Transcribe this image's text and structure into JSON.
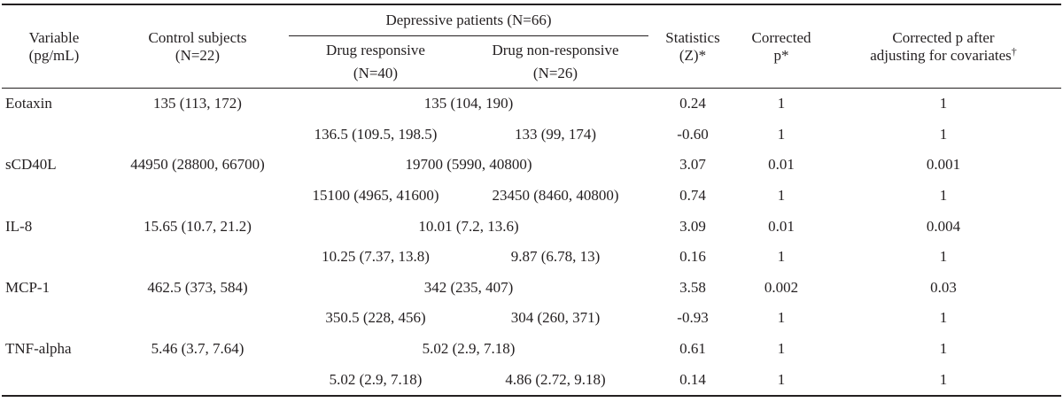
{
  "table": {
    "headers": {
      "variable": [
        "Variable",
        "(pg/mL)"
      ],
      "control": [
        "Control subjects",
        "(N=22)"
      ],
      "depressive_group": "Depressive patients (N=66)",
      "drug_responsive": [
        "Drug responsive",
        "(N=40)"
      ],
      "drug_nonresponsive": [
        "Drug non-responsive",
        "(N=26)"
      ],
      "statistics": [
        "Statistics",
        "(Z)*"
      ],
      "corrected_p": [
        "Corrected",
        "p*"
      ],
      "corrected_p_adj": [
        "Corrected p after",
        "adjusting for covariates"
      ],
      "corrected_p_adj_mark": "†"
    },
    "rows": [
      {
        "variable": "Eotaxin",
        "control": "135 (113, 172)",
        "combined": "135 (104, 190)",
        "z": "0.24",
        "p": "1",
        "padj": "1"
      },
      {
        "variable": "",
        "responsive": "136.5 (109.5, 198.5)",
        "nonresponsive": "133 (99, 174)",
        "z": "-0.60",
        "p": "1",
        "padj": "1"
      },
      {
        "variable": "sCD40L",
        "control": "44950 (28800, 66700)",
        "combined": "19700 (5990, 40800)",
        "z": "3.07",
        "p": "0.01",
        "padj": "0.001"
      },
      {
        "variable": "",
        "responsive": "15100 (4965, 41600)",
        "nonresponsive": "23450 (8460, 40800)",
        "z": "0.74",
        "p": "1",
        "padj": "1"
      },
      {
        "variable": "IL-8",
        "control": "15.65 (10.7, 21.2)",
        "combined": "10.01 (7.2, 13.6)",
        "z": "3.09",
        "p": "0.01",
        "padj": "0.004"
      },
      {
        "variable": "",
        "responsive": "10.25 (7.37, 13.8)",
        "nonresponsive": "9.87 (6.78, 13)",
        "z": "0.16",
        "p": "1",
        "padj": "1"
      },
      {
        "variable": "MCP-1",
        "control": "462.5 (373, 584)",
        "combined": "342 (235, 407)",
        "z": "3.58",
        "p": "0.002",
        "padj": "0.03"
      },
      {
        "variable": "",
        "responsive": "350.5 (228, 456)",
        "nonresponsive": "304 (260, 371)",
        "z": "-0.93",
        "p": "1",
        "padj": "1"
      },
      {
        "variable": "TNF-alpha",
        "control": "5.46 (3.7, 7.64)",
        "combined": "5.02 (2.9, 7.18)",
        "z": "0.61",
        "p": "1",
        "padj": "1"
      },
      {
        "variable": "",
        "responsive": "5.02 (2.9, 7.18)",
        "nonresponsive": "4.86 (2.72, 9.18)",
        "z": "0.14",
        "p": "1",
        "padj": "1"
      }
    ]
  }
}
